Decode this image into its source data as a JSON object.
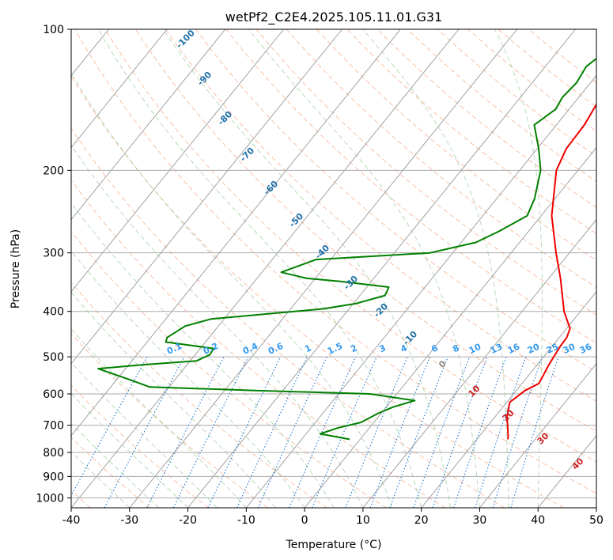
{
  "chart_data": {
    "type": "skew-t",
    "title": "wetPf2_C2E4.2025.105.11.01.G31",
    "xlabel": "Temperature (°C)",
    "ylabel": "Pressure (hPa)",
    "xlim": [
      -40,
      50
    ],
    "ylim": [
      1050,
      100
    ],
    "y_scale": "log",
    "grid": true,
    "x_ticks": [
      -40,
      -30,
      -20,
      -10,
      0,
      10,
      20,
      30,
      40,
      50
    ],
    "y_ticks": [
      1000,
      900,
      800,
      700,
      600,
      500,
      400,
      300,
      200,
      100
    ],
    "colors": {
      "temperature": "#ee0000",
      "dewpoint": "#008000",
      "dry_adiabat": "#f4a582",
      "moist_adiabat": "#99cc99",
      "mixing_ratio": "#1f77d4",
      "isotherm": "#999999",
      "label_blue": "#1f6fa8",
      "label_red": "#cc2222",
      "label_mix": "#3399ee"
    },
    "series": [
      {
        "key": "temperature",
        "points": [
          [
            25.3,
            750
          ],
          [
            25.0,
            740
          ],
          [
            22.0,
            670
          ],
          [
            20.5,
            625
          ],
          [
            21.5,
            590
          ],
          [
            22.9,
            570
          ],
          [
            22.0,
            520
          ],
          [
            21.4,
            475
          ],
          [
            21.3,
            455
          ],
          [
            20.6,
            435
          ],
          [
            17.2,
            400
          ],
          [
            12.0,
            340
          ],
          [
            7.7,
            300
          ],
          [
            1.8,
            250
          ],
          [
            -3.7,
            200
          ],
          [
            -5.0,
            180
          ],
          [
            -5.2,
            160
          ],
          [
            -6.8,
            130
          ],
          [
            -7.3,
            115
          ],
          [
            -6.1,
            105
          ],
          [
            -5.2,
            100
          ]
        ]
      },
      {
        "key": "dewpoint",
        "points": [
          [
            -1.8,
            750
          ],
          [
            -7.6,
            730
          ],
          [
            -5.5,
            710
          ],
          [
            -2.2,
            690
          ],
          [
            -0.5,
            660
          ],
          [
            1.2,
            640
          ],
          [
            4.0,
            620
          ],
          [
            -4.6,
            600
          ],
          [
            -24.7,
            590
          ],
          [
            -43.3,
            580
          ],
          [
            -47.6,
            560
          ],
          [
            -54.7,
            530
          ],
          [
            -47.7,
            520
          ],
          [
            -38.9,
            510
          ],
          [
            -37.5,
            495
          ],
          [
            -37.7,
            480
          ],
          [
            -46.8,
            465
          ],
          [
            -47.2,
            455
          ],
          [
            -45.7,
            430
          ],
          [
            -42.2,
            415
          ],
          [
            -24.5,
            395
          ],
          [
            -19.6,
            385
          ],
          [
            -15.7,
            370
          ],
          [
            -16.2,
            355
          ],
          [
            -25.5,
            345
          ],
          [
            -31.5,
            340
          ],
          [
            -36.7,
            330
          ],
          [
            -32.5,
            310
          ],
          [
            -13.9,
            300
          ],
          [
            -7.5,
            285
          ],
          [
            -5.1,
            270
          ],
          [
            -2.4,
            250
          ],
          [
            -3.5,
            230
          ],
          [
            -6.4,
            200
          ],
          [
            -9.7,
            180
          ],
          [
            -13.8,
            160
          ],
          [
            -12.3,
            148
          ],
          [
            -12.8,
            140
          ],
          [
            -12.4,
            130
          ],
          [
            -13.0,
            120
          ],
          [
            -11.5,
            110
          ],
          [
            -10.1,
            103
          ],
          [
            -9.3,
            100
          ]
        ]
      }
    ],
    "dry_adiabat_labels": [
      "-100",
      "-90",
      "-80",
      "-70",
      "-60",
      "-50",
      "-40",
      "-30",
      "-20",
      "-10",
      "0",
      "10",
      "20",
      "30",
      "40"
    ],
    "mixing_ratio_labels": [
      "0.1",
      "0.2",
      "0.4",
      "0.6",
      "1",
      "1.5",
      "2",
      "3",
      "4",
      "6",
      "8",
      "10",
      "13",
      "16",
      "20",
      "25",
      "30",
      "36"
    ]
  }
}
